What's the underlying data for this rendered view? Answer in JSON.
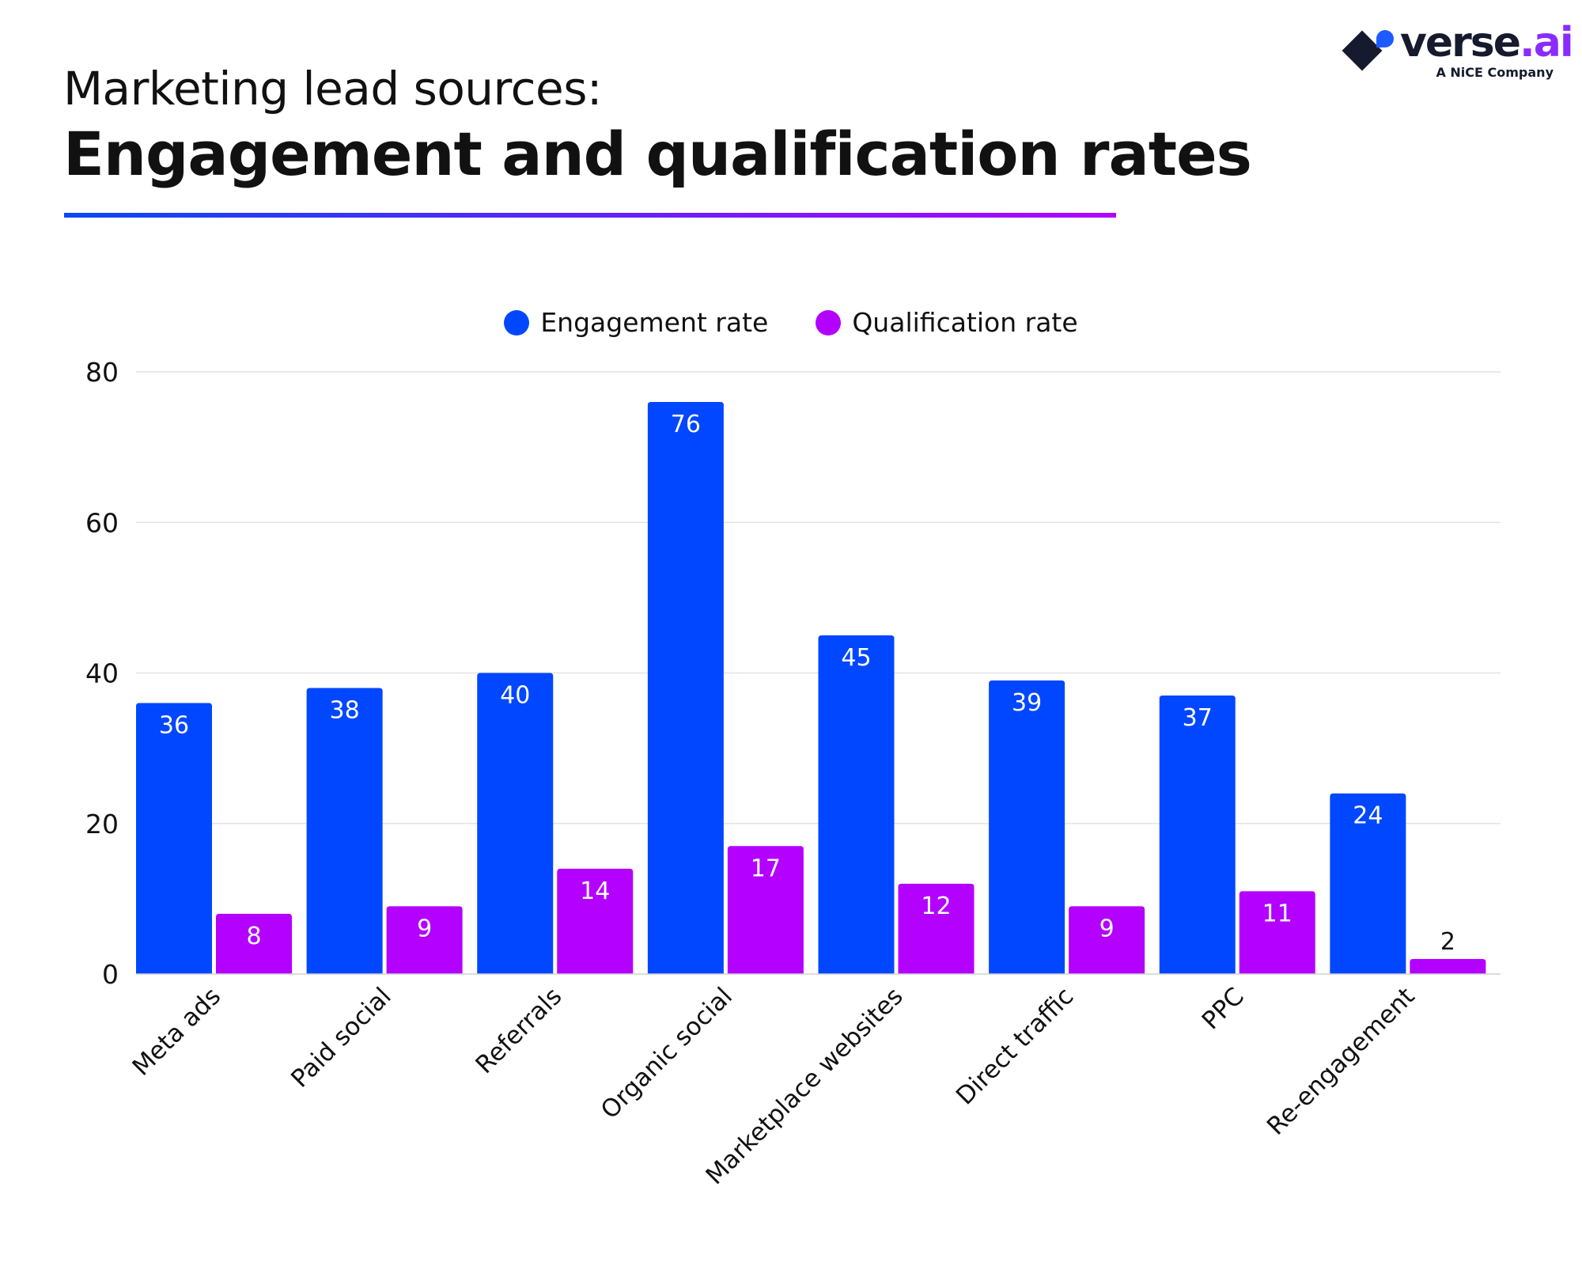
{
  "header": {
    "subtitle": "Marketing lead sources:",
    "title": "Engagement and qualification rates"
  },
  "logo": {
    "text": "verse.ai",
    "tagline": "A NiCE Company"
  },
  "colors": {
    "engagement": "#0047FF",
    "qualification": "#B300FF",
    "rule_start": "#0A47F5",
    "rule_end": "#B300FF"
  },
  "chart_data": {
    "type": "bar",
    "categories": [
      "Meta ads",
      "Paid social",
      "Referrals",
      "Organic social",
      "Marketplace websites",
      "Direct traffic",
      "PPC",
      "Re-engagement"
    ],
    "series": [
      {
        "name": "Engagement rate",
        "color": "#0047FF",
        "values": [
          36,
          38,
          40,
          76,
          45,
          39,
          37,
          24
        ]
      },
      {
        "name": "Qualification rate",
        "color": "#B300FF",
        "values": [
          8,
          9,
          14,
          17,
          12,
          9,
          11,
          2
        ]
      }
    ],
    "yticks": [
      0,
      20,
      40,
      60,
      80
    ],
    "ylim": [
      0,
      80
    ],
    "grid": true,
    "legend": "top-center",
    "xlabel": "",
    "ylabel": ""
  }
}
